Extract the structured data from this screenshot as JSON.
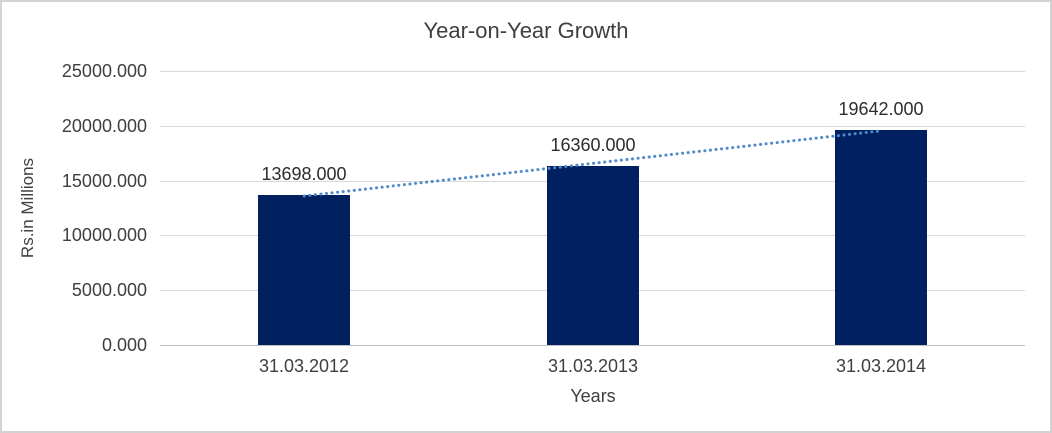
{
  "window": {
    "background_color": "#ffffff",
    "border_color": "#d3d3d3"
  },
  "chart_data": {
    "type": "bar",
    "title": "Year-on-Year Growth",
    "xlabel": "Years",
    "ylabel": "Rs.in Millions",
    "categories": [
      "31.03.2012",
      "31.03.2013",
      "31.03.2014"
    ],
    "values": [
      13698,
      16360,
      19642
    ],
    "value_labels": [
      "13698.000",
      "16360.000",
      "19642.000"
    ],
    "y_ticks": [
      "0.000",
      "5000.000",
      "10000.000",
      "15000.000",
      "20000.000",
      "25000.000"
    ],
    "ylim": [
      0,
      25000
    ],
    "grid": true,
    "legend_position": "none",
    "bar_color": "#002060",
    "text_color": "#3f3f3f",
    "gridline_color": "#d9d9d9",
    "trendline": {
      "type": "linear",
      "style": "dotted",
      "color": "#5189c8"
    }
  }
}
